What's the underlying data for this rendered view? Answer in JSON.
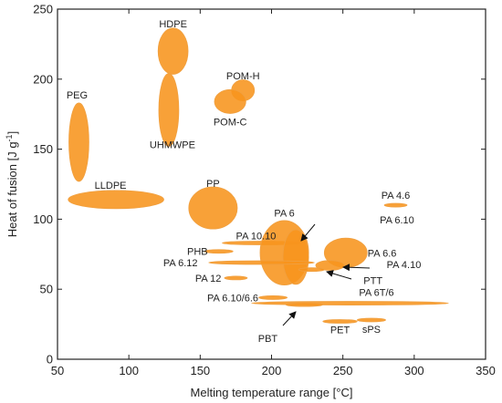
{
  "chart_data": {
    "type": "scatter",
    "xlabel": "Melting temperature range [°C]",
    "ylabel_main": "Heat of fusion  [J g",
    "ylabel_sup": "-1",
    "ylabel_tail": "]",
    "xlim": [
      50,
      350
    ],
    "ylim": [
      0,
      250
    ],
    "xticks": [
      50,
      100,
      150,
      200,
      250,
      300,
      350
    ],
    "yticks": [
      0,
      50,
      100,
      150,
      200,
      250
    ],
    "grid": false,
    "colors": {
      "fill": "#f7941d",
      "edge": "#f0a040",
      "axes": "#222222"
    },
    "materials": [
      {
        "name": "HDPE",
        "x": 131,
        "y": 220,
        "w": 21,
        "h": 33
      },
      {
        "name": "UHMWPE",
        "x": 128,
        "y": 178,
        "w": 14,
        "h": 52
      },
      {
        "name": "POM-H",
        "x": 180,
        "y": 192,
        "w": 16,
        "h": 15
      },
      {
        "name": "POM-C",
        "x": 171,
        "y": 184,
        "w": 22,
        "h": 17
      },
      {
        "name": "PEG",
        "x": 65,
        "y": 155,
        "w": 14,
        "h": 56
      },
      {
        "name": "LLDPE",
        "x": 91,
        "y": 114,
        "w": 67,
        "h": 13
      },
      {
        "name": "PP",
        "x": 159,
        "y": 108,
        "w": 34,
        "h": 30
      },
      {
        "name": "PA 4.6",
        "x": 287,
        "y": 110,
        "w": 16,
        "h": 2.5
      },
      {
        "name": "PA 10.10",
        "x": 193,
        "y": 83,
        "w": 55,
        "h": 2.5
      },
      {
        "name": "PA 6",
        "x": 209,
        "y": 76,
        "w": 34,
        "h": 46
      },
      {
        "name": "PA 6.10",
        "x": 217,
        "y": 73,
        "w": 18,
        "h": 39
      },
      {
        "name": "PA 6.6",
        "x": 252,
        "y": 76,
        "w": 30,
        "h": 21
      },
      {
        "name": "PHB",
        "x": 163,
        "y": 77,
        "w": 20,
        "h": 2.5
      },
      {
        "name": "PA 6.12",
        "x": 193,
        "y": 69,
        "w": 74,
        "h": 2.5
      },
      {
        "name": "PA 4.10",
        "x": 241,
        "y": 67,
        "w": 20,
        "h": 7
      },
      {
        "name": "PTT",
        "x": 228,
        "y": 64,
        "w": 18,
        "h": 2.5
      },
      {
        "name": "PA 12",
        "x": 175,
        "y": 58,
        "w": 16,
        "h": 2.5
      },
      {
        "name": "PA 6.10/6.6",
        "x": 201,
        "y": 44,
        "w": 20,
        "h": 2.5
      },
      {
        "name": "PA 6T/6",
        "x": 255,
        "y": 40,
        "w": 138,
        "h": 2.5
      },
      {
        "name": "PBT",
        "x": 223,
        "y": 39,
        "w": 26,
        "h": 2.5
      },
      {
        "name": "PET",
        "x": 248,
        "y": 27,
        "w": 24,
        "h": 2.5
      },
      {
        "name": "sPS",
        "x": 270,
        "y": 28,
        "w": 20,
        "h": 2.5
      }
    ]
  }
}
